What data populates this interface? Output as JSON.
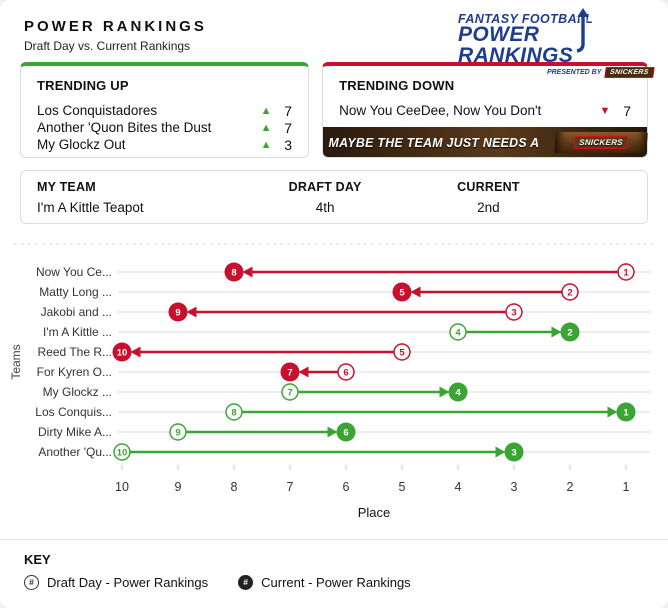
{
  "page": {
    "title": "POWER RANKINGS",
    "subtitle": "Draft Day vs. Current Rankings"
  },
  "logo": {
    "line1": "FANTASY FOOTBALL",
    "line2": "POWER RANKINGS",
    "presented_by": "PRESENTED BY",
    "sponsor": "SNICKERS",
    "color": "#1E3D8F"
  },
  "trending_up": {
    "title": "TRENDING UP",
    "accent_color": "#3AA534",
    "items": [
      {
        "team": "Los Conquistadores",
        "change": "7"
      },
      {
        "team": "Another 'Quon Bites the Dust",
        "change": "7"
      },
      {
        "team": "My Glockz Out",
        "change": "3"
      }
    ]
  },
  "trending_down": {
    "title": "TRENDING DOWN",
    "accent_color": "#C8102E",
    "items": [
      {
        "team": "Now You CeeDee, Now You Don't",
        "change": "7"
      }
    ],
    "ad": {
      "text": "MAYBE THE TEAM JUST NEEDS A",
      "brand": "SNICKERS"
    }
  },
  "my_team": {
    "headers": {
      "team": "MY TEAM",
      "draft_day": "DRAFT DAY",
      "current": "CURRENT"
    },
    "team": "I'm A Kittle Teapot",
    "draft_day": "4th",
    "current": "2nd"
  },
  "chart_data": {
    "type": "dumbbell-arrow",
    "title": "",
    "xlabel": "Place",
    "ylabel": "Teams",
    "x_ticks": [
      10,
      9,
      8,
      7,
      6,
      5,
      4,
      3,
      2,
      1
    ],
    "x_axis_reversed": true,
    "xlim": [
      10,
      1
    ],
    "grid": "horizontal rows",
    "marker_legend": {
      "open_circle": "Draft Day rank",
      "filled_circle": "Current rank"
    },
    "teams": [
      {
        "label": "Now You Ce...",
        "draft_day": 1,
        "current": 8,
        "trend": "down"
      },
      {
        "label": "Matty Long ...",
        "draft_day": 2,
        "current": 5,
        "trend": "down"
      },
      {
        "label": "Jakobi and ...",
        "draft_day": 3,
        "current": 9,
        "trend": "down"
      },
      {
        "label": "I'm A Kittle ...",
        "draft_day": 4,
        "current": 2,
        "trend": "up"
      },
      {
        "label": "Reed The R...",
        "draft_day": 5,
        "current": 10,
        "trend": "down"
      },
      {
        "label": "For Kyren O...",
        "draft_day": 6,
        "current": 7,
        "trend": "down"
      },
      {
        "label": "My Glockz ...",
        "draft_day": 7,
        "current": 4,
        "trend": "up"
      },
      {
        "label": "Los Conquis...",
        "draft_day": 8,
        "current": 1,
        "trend": "up"
      },
      {
        "label": "Dirty Mike A...",
        "draft_day": 9,
        "current": 6,
        "trend": "up"
      },
      {
        "label": "Another 'Qu...",
        "draft_day": 10,
        "current": 3,
        "trend": "up"
      }
    ],
    "colors": {
      "up": "#3AA534",
      "down": "#C8102E",
      "gridline": "#ECECEC"
    }
  },
  "key": {
    "title": "KEY",
    "items": [
      {
        "symbol": "#",
        "style": "open",
        "label": "Draft Day - Power Rankings"
      },
      {
        "symbol": "#",
        "style": "filled",
        "label": "Current - Power Rankings"
      }
    ]
  }
}
